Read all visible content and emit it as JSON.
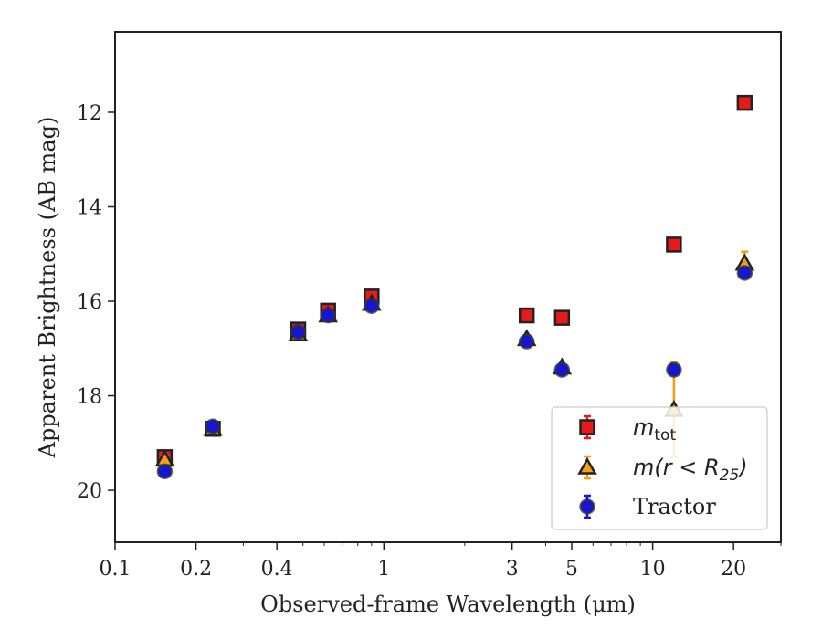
{
  "chart_data": {
    "type": "scatter",
    "x_scale": "log",
    "y_inverted": true,
    "xlim": [
      0.1,
      30
    ],
    "ylim": [
      21.1,
      10.3
    ],
    "xlabel": "Observed-frame Wavelength (μm)",
    "ylabel": "Apparent Brightness (AB mag)",
    "x_ticks": [
      {
        "value": 0.1,
        "label": "0.1"
      },
      {
        "value": 0.2,
        "label": "0.2"
      },
      {
        "value": 0.4,
        "label": "0.4"
      },
      {
        "value": 1,
        "label": "1"
      },
      {
        "value": 3,
        "label": "3"
      },
      {
        "value": 5,
        "label": "5"
      },
      {
        "value": 10,
        "label": "10"
      },
      {
        "value": 20,
        "label": "20"
      }
    ],
    "y_ticks": [
      {
        "value": 12,
        "label": "12"
      },
      {
        "value": 14,
        "label": "14"
      },
      {
        "value": 16,
        "label": "16"
      },
      {
        "value": 18,
        "label": "18"
      },
      {
        "value": 20,
        "label": "20"
      }
    ],
    "legend_position": "lower-right",
    "series": [
      {
        "name": "m_tot",
        "legend_label": {
          "main": "m",
          "sub": "tot"
        },
        "marker": "square",
        "face_color": "#e8191a",
        "edge_color": "#222222",
        "err_color": "#e8191a",
        "points": [
          {
            "x": 0.153,
            "y": 19.3,
            "err": 0.08
          },
          {
            "x": 0.231,
            "y": 18.7,
            "err": 0.05
          },
          {
            "x": 0.48,
            "y": 16.6,
            "err": 0.08
          },
          {
            "x": 0.62,
            "y": 16.2,
            "err": 0.08
          },
          {
            "x": 0.9,
            "y": 15.9,
            "err": 0.1
          },
          {
            "x": 3.4,
            "y": 16.3,
            "err": 0.05
          },
          {
            "x": 4.6,
            "y": 16.35,
            "err": 0.05
          },
          {
            "x": 12,
            "y": 14.8,
            "err": 0.05
          },
          {
            "x": 22,
            "y": 11.8,
            "err": 0.05
          }
        ]
      },
      {
        "name": "m(r < R25)",
        "legend_label": {
          "main": "m(r < R",
          "sub": "25",
          "suffix": ")"
        },
        "marker": "triangle",
        "face_color": "#f3a014",
        "edge_color": "#222222",
        "err_color": "#f3a014",
        "points": [
          {
            "x": 0.153,
            "y": 19.35,
            "err": 0.08
          },
          {
            "x": 0.231,
            "y": 18.7,
            "err": 0.05
          },
          {
            "x": 0.48,
            "y": 16.7,
            "err": 0.05
          },
          {
            "x": 0.62,
            "y": 16.3,
            "err": 0.05
          },
          {
            "x": 0.9,
            "y": 16.05,
            "err": 0.05
          },
          {
            "x": 3.4,
            "y": 16.8,
            "err": 0.05
          },
          {
            "x": 4.6,
            "y": 17.4,
            "err": 0.05
          },
          {
            "x": 12,
            "y": 18.3,
            "err": 1.0
          },
          {
            "x": 22,
            "y": 15.2,
            "err": 0.25
          }
        ]
      },
      {
        "name": "Tractor",
        "legend_label": {
          "main": "Tractor"
        },
        "marker": "circle",
        "face_color": "#1515d6",
        "edge_color": "#333333",
        "err_color": "#1515d6",
        "points": [
          {
            "x": 0.153,
            "y": 19.6,
            "err": 0.08
          },
          {
            "x": 0.231,
            "y": 18.65,
            "err": 0.05
          },
          {
            "x": 0.48,
            "y": 16.65,
            "err": 0.05
          },
          {
            "x": 0.62,
            "y": 16.3,
            "err": 0.05
          },
          {
            "x": 0.9,
            "y": 16.1,
            "err": 0.05
          },
          {
            "x": 3.4,
            "y": 16.85,
            "err": 0.05
          },
          {
            "x": 4.6,
            "y": 17.45,
            "err": 0.05
          },
          {
            "x": 12,
            "y": 17.45,
            "err": 0.1
          },
          {
            "x": 22,
            "y": 15.4,
            "err": 0.1
          }
        ]
      }
    ]
  }
}
